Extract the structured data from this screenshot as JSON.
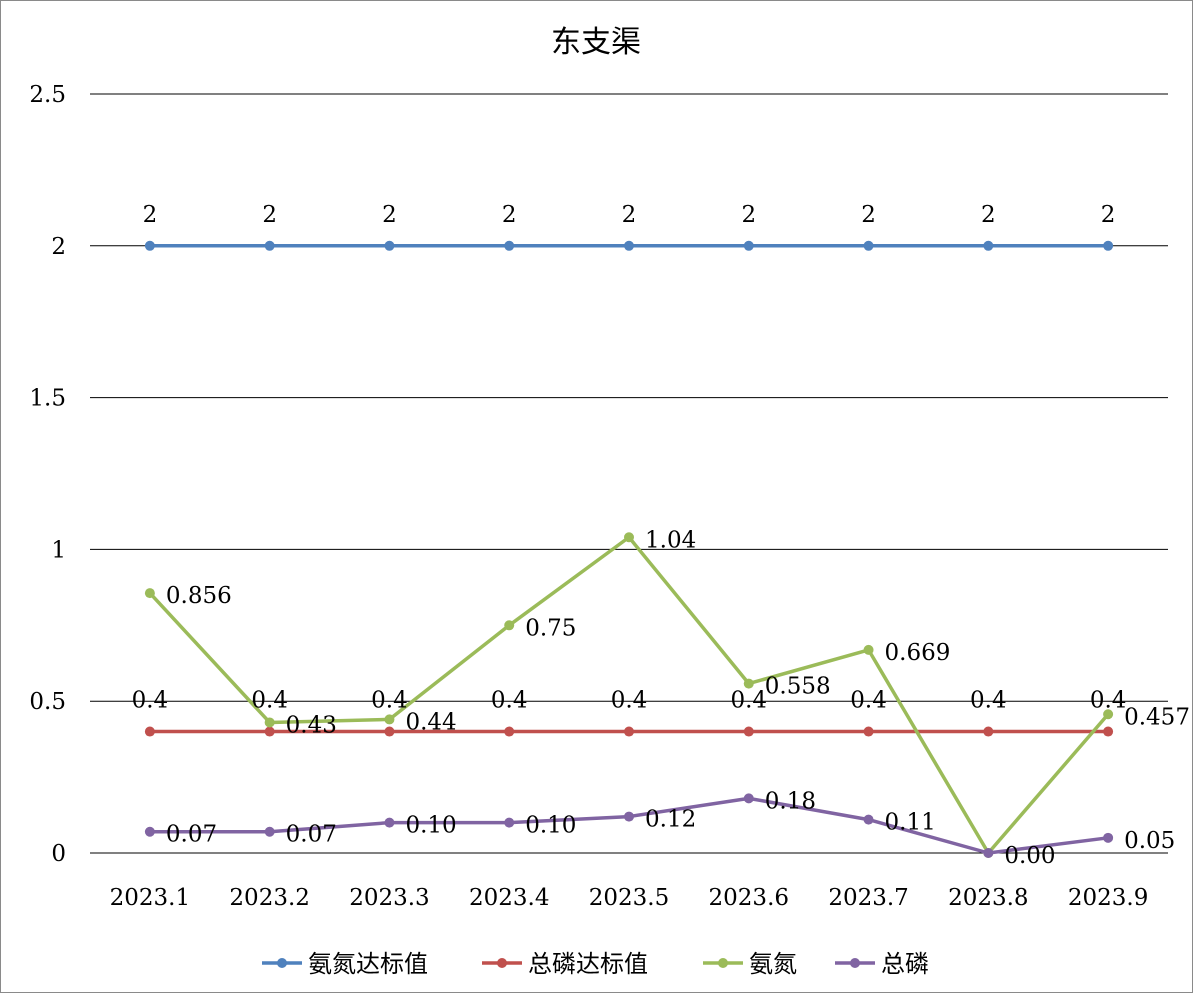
{
  "chart_data": {
    "type": "line",
    "title": "东支渠",
    "xlabel": "",
    "ylabel": "",
    "categories": [
      "2023.1",
      "2023.2",
      "2023.3",
      "2023.4",
      "2023.5",
      "2023.6",
      "2023.7",
      "2023.8",
      "2023.9"
    ],
    "ylim": [
      0,
      2.5
    ],
    "yticks": [
      0,
      0.5,
      1,
      1.5,
      2,
      2.5
    ],
    "ytick_labels": [
      "0",
      "0.5",
      "1",
      "1.5",
      "2",
      "2.5"
    ],
    "grid": "horizontal",
    "legend_position": "bottom",
    "series": [
      {
        "name": "氨氮达标值",
        "color": "#4f81bd",
        "values": [
          2,
          2,
          2,
          2,
          2,
          2,
          2,
          2,
          2
        ],
        "labels": [
          "2",
          "2",
          "2",
          "2",
          "2",
          "2",
          "2",
          "2",
          "2"
        ],
        "label_position": "above"
      },
      {
        "name": "总磷达标值",
        "color": "#c0504d",
        "values": [
          0.4,
          0.4,
          0.4,
          0.4,
          0.4,
          0.4,
          0.4,
          0.4,
          0.4
        ],
        "labels": [
          "0.4",
          "0.4",
          "0.4",
          "0.4",
          "0.4",
          "0.4",
          "0.4",
          "0.4",
          "0.4"
        ],
        "label_position": "above"
      },
      {
        "name": "氨氮",
        "color": "#9bbb59",
        "values": [
          0.856,
          0.43,
          0.44,
          0.75,
          1.04,
          0.558,
          0.669,
          0.0,
          0.457
        ],
        "labels": [
          "0.856",
          "0.43",
          "0.44",
          "0.75",
          "1.04",
          "0.558",
          "0.669",
          "",
          "0.457"
        ],
        "label_position": "right"
      },
      {
        "name": "总磷",
        "color": "#8064a2",
        "values": [
          0.07,
          0.07,
          0.1,
          0.1,
          0.12,
          0.18,
          0.11,
          0.0,
          0.05
        ],
        "labels": [
          "0.07",
          "0.07",
          "0.10",
          "0.10",
          "0.12",
          "0.18",
          "0.11",
          "0.00",
          "0.05"
        ],
        "label_position": "right"
      }
    ]
  }
}
